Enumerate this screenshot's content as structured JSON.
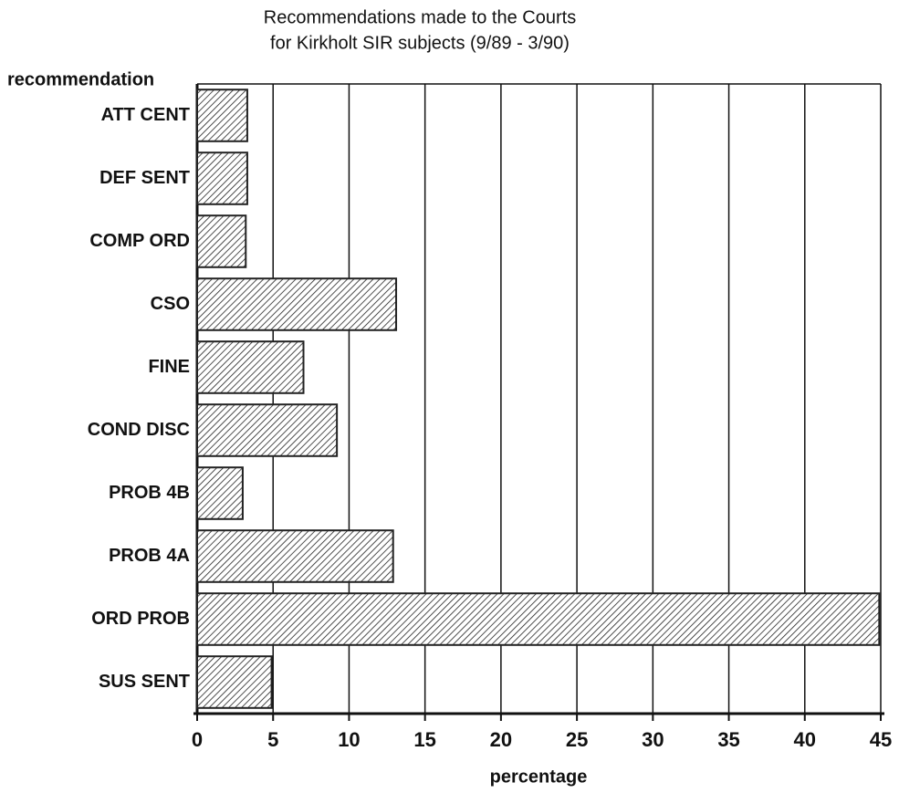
{
  "chart_data": {
    "type": "hbar",
    "title": "Recommendations made to the Courts",
    "subtitle": "for Kirkholt SIR subjects (9/89 - 3/90)",
    "y_label": "recommendation",
    "x_label": "percentage",
    "categories": [
      "ATT CENT",
      "DEF SENT",
      "COMP ORD",
      "CSO",
      "FINE",
      "COND DISC",
      "PROB 4B",
      "PROB 4A",
      "ORD PROB",
      "SUS SENT"
    ],
    "values": [
      3.3,
      3.3,
      3.2,
      13.1,
      7.0,
      9.2,
      3.0,
      12.9,
      44.9,
      4.9
    ],
    "color": "#222222",
    "xlim": [
      0,
      45
    ],
    "xticks": [
      0,
      5,
      10,
      15,
      20,
      25,
      30,
      35,
      40,
      45
    ],
    "grid": true
  }
}
